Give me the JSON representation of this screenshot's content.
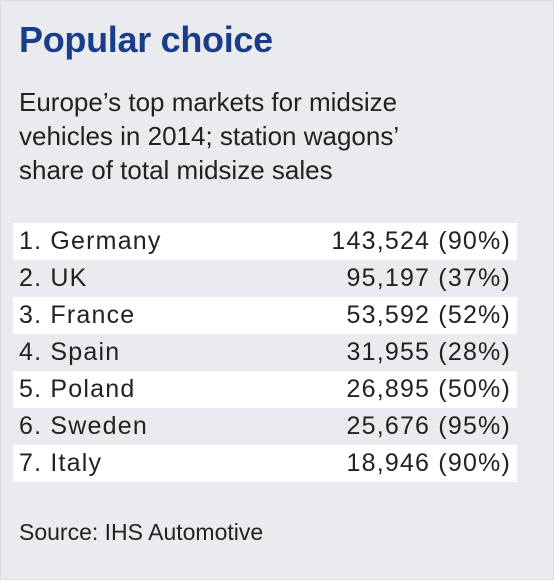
{
  "chart_data": {
    "type": "table",
    "title": "Popular choice",
    "subtitle_lines": [
      "Europe’s top markets for midsize",
      "vehicles in 2014; station wagons’",
      "share of total midsize sales"
    ],
    "rows": [
      {
        "label": "1. Germany",
        "value": "143,524 (90%)",
        "sales": 143524,
        "wagon_share_pct": 90
      },
      {
        "label": "2. UK",
        "value": "95,197 (37%)",
        "sales": 95197,
        "wagon_share_pct": 37
      },
      {
        "label": "3. France",
        "value": "53,592 (52%)",
        "sales": 53592,
        "wagon_share_pct": 52
      },
      {
        "label": "4. Spain",
        "value": "31,955 (28%)",
        "sales": 31955,
        "wagon_share_pct": 28
      },
      {
        "label": "5. Poland",
        "value": "26,895 (50%)",
        "sales": 26895,
        "wagon_share_pct": 50
      },
      {
        "label": "6. Sweden",
        "value": "25,676 (95%)",
        "sales": 25676,
        "wagon_share_pct": 95
      },
      {
        "label": "7. Italy",
        "value": "18,946 (90%)",
        "sales": 18946,
        "wagon_share_pct": 90
      }
    ],
    "source": "Source: IHS Automotive"
  },
  "colors": {
    "title": "#1a3d8a",
    "background": "#e9ebef",
    "row_shade": "#ffffff",
    "text": "#222222"
  }
}
